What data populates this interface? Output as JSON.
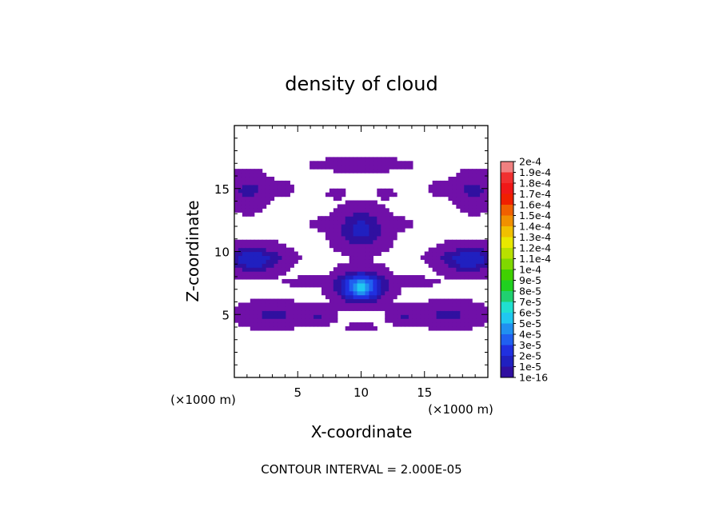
{
  "chart_data": {
    "type": "heatmap",
    "title": "density of cloud",
    "xlabel": "X-coordinate",
    "ylabel": "Z-coordinate",
    "x_unit": "(×1000 m)",
    "y_unit": "(×1000 m)",
    "xlim": [
      0,
      20
    ],
    "ylim": [
      0,
      20
    ],
    "x_ticks": [
      5,
      10,
      15
    ],
    "y_ticks": [
      5,
      10,
      15
    ],
    "footer": "CONTOUR INTERVAL = 2.000E-05",
    "colorbar": {
      "labels": [
        "2e-4",
        "1.9e-4",
        "1.8e-4",
        "1.7e-4",
        "1.6e-4",
        "1.5e-4",
        "1.4e-4",
        "1.3e-4",
        "1.2e-4",
        "1.1e-4",
        "1e-4",
        "9e-5",
        "8e-5",
        "7e-5",
        "6e-5",
        "5e-5",
        "4e-5",
        "3e-5",
        "2e-5",
        "1e-5",
        "1e-16"
      ],
      "colors": [
        "#f08080",
        "#f03030",
        "#f01818",
        "#f02000",
        "#f06000",
        "#f09000",
        "#f0c000",
        "#e8e800",
        "#b8e000",
        "#80d800",
        "#40d000",
        "#20d020",
        "#20d070",
        "#20e0d0",
        "#20c8f0",
        "#2090f0",
        "#2060f0",
        "#2030e0",
        "#2020c0",
        "#3010a0",
        "#7010a8"
      ]
    },
    "blobs": [
      {
        "x": 1.5,
        "z": 9.4,
        "rx": 1.8,
        "rz": 0.9,
        "peak": 3e-05
      },
      {
        "x": 18.5,
        "z": 9.4,
        "rx": 1.8,
        "rz": 0.9,
        "peak": 3e-05
      },
      {
        "x": 10.0,
        "z": 7.2,
        "rx": 1.5,
        "rz": 1.0,
        "peak": 6.5e-05
      },
      {
        "x": 10.0,
        "z": 11.8,
        "rx": 1.6,
        "rz": 1.3,
        "peak": 2.5e-05
      },
      {
        "x": 10.0,
        "z": 16.9,
        "rx": 3.0,
        "rz": 0.4,
        "peak": 8e-06
      },
      {
        "x": 1.0,
        "z": 14.8,
        "rx": 1.3,
        "rz": 1.2,
        "peak": 1.2e-05
      },
      {
        "x": 19.0,
        "z": 14.8,
        "rx": 1.3,
        "rz": 1.2,
        "peak": 1.2e-05
      },
      {
        "x": 3.0,
        "z": 15.0,
        "rx": 1.4,
        "rz": 0.5,
        "peak": 6e-06
      },
      {
        "x": 17.0,
        "z": 15.0,
        "rx": 1.4,
        "rz": 0.5,
        "peak": 6e-06
      },
      {
        "x": 3.0,
        "z": 5.0,
        "rx": 2.0,
        "rz": 0.8,
        "peak": 1.3e-05
      },
      {
        "x": 17.0,
        "z": 5.0,
        "rx": 2.0,
        "rz": 0.8,
        "peak": 1.3e-05
      },
      {
        "x": 6.5,
        "z": 7.6,
        "rx": 2.0,
        "rz": 0.35,
        "peak": 5e-06
      },
      {
        "x": 13.5,
        "z": 7.6,
        "rx": 2.0,
        "rz": 0.35,
        "peak": 5e-06
      },
      {
        "x": 6.6,
        "z": 4.9,
        "rx": 1.0,
        "rz": 0.6,
        "peak": 1e-05
      },
      {
        "x": 13.4,
        "z": 4.9,
        "rx": 1.0,
        "rz": 0.6,
        "peak": 1e-05
      },
      {
        "x": 10.0,
        "z": 4.0,
        "rx": 0.9,
        "rz": 0.3,
        "peak": 5e-06
      },
      {
        "x": 3.8,
        "z": 9.6,
        "rx": 1.0,
        "rz": 0.35,
        "peak": 5e-06
      },
      {
        "x": 16.2,
        "z": 9.6,
        "rx": 1.0,
        "rz": 0.35,
        "peak": 5e-06
      },
      {
        "x": 8.0,
        "z": 14.6,
        "rx": 0.6,
        "rz": 0.3,
        "peak": 5e-06
      },
      {
        "x": 12.0,
        "z": 14.6,
        "rx": 0.6,
        "rz": 0.3,
        "peak": 5e-06
      },
      {
        "x": 7.0,
        "z": 12.2,
        "rx": 0.8,
        "rz": 0.4,
        "peak": 5e-06
      },
      {
        "x": 13.0,
        "z": 12.2,
        "rx": 0.8,
        "rz": 0.4,
        "peak": 5e-06
      }
    ]
  }
}
